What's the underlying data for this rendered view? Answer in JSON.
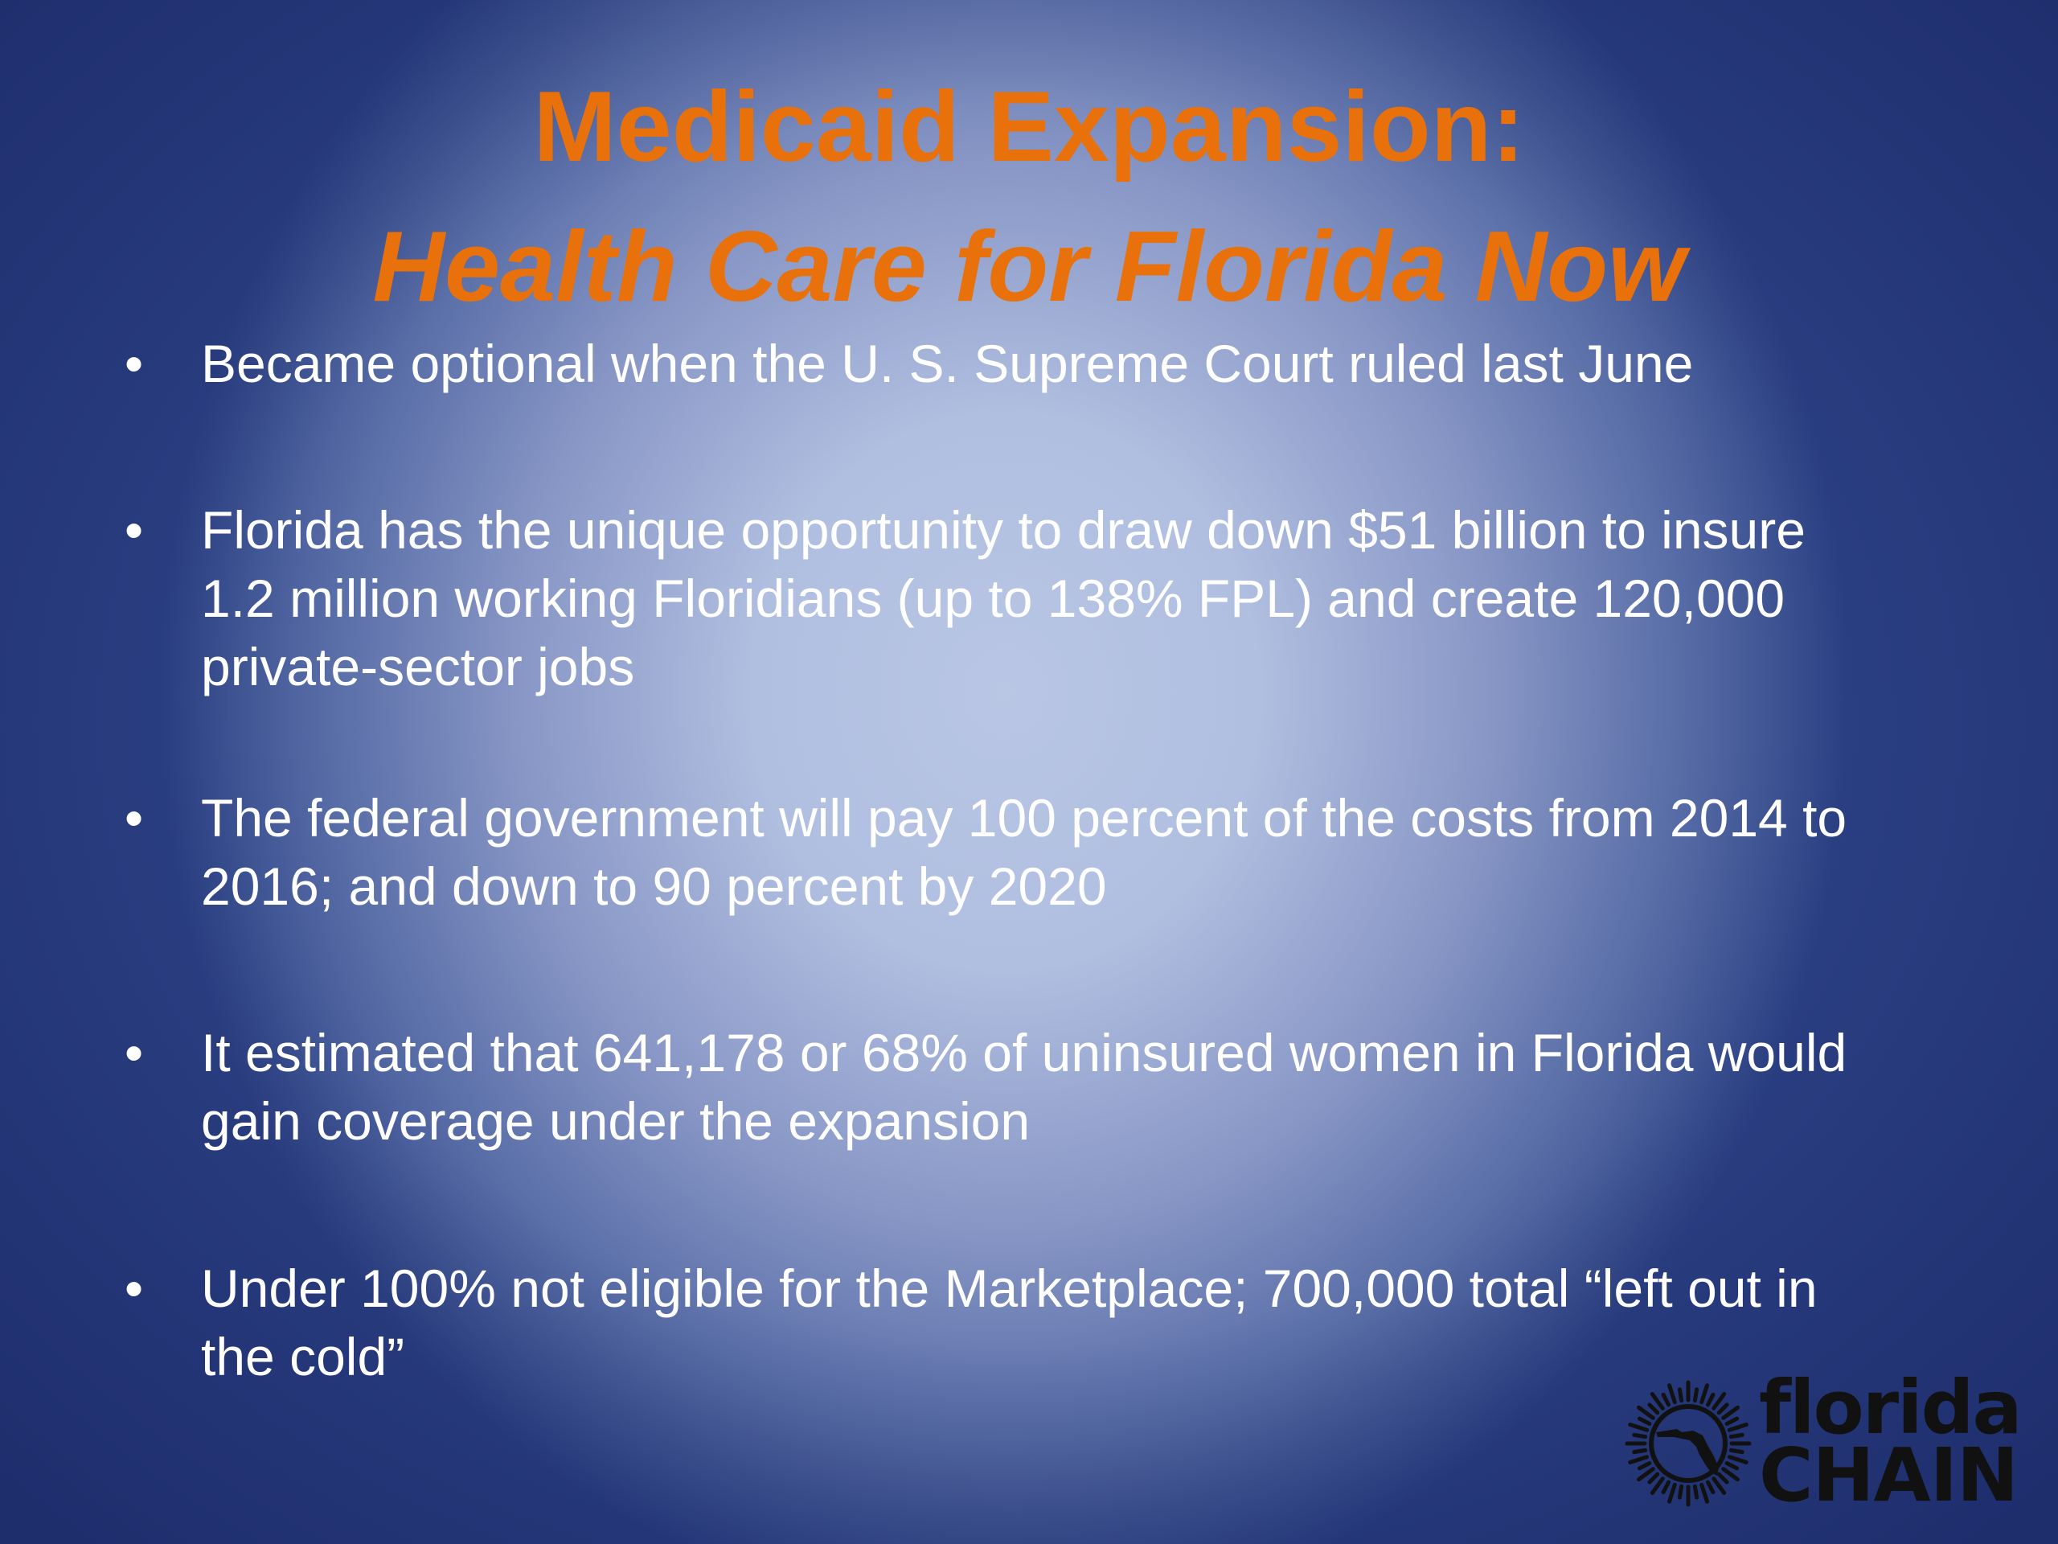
{
  "slide": {
    "title_line_1": "Medicaid Expansion:",
    "title_line_2": "Health Care for Florida Now",
    "bullet_symbol": "•",
    "bullets": [
      {
        "text": "Became optional when the U. S. Supreme Court ruled last June"
      },
      {
        "text": "Florida has the unique opportunity to draw down $51 billion to insure 1.2 million working Floridians (up to 138% FPL) and create 120,000 private-sector jobs"
      },
      {
        "text": "The federal government will pay 100 percent of the costs from 2014 to 2016; and down to 90 percent by 2020"
      },
      {
        "text": "It estimated that 641,178  or 68% of uninsured women in Florida would gain coverage under the expansion"
      },
      {
        "text": "Under 100% not eligible for the Marketplace; 700,000 total “left out in the cold”"
      }
    ]
  },
  "logo": {
    "word_1": "florida",
    "word_2": "CHAIN",
    "icon": "florida-map-sun-icon"
  },
  "colors": {
    "title": "#e8710c",
    "bullet_text": "#ffffff",
    "logo_text": "#111111",
    "background_center": "#b9c6e4",
    "background_edge": "#2a3f82"
  }
}
